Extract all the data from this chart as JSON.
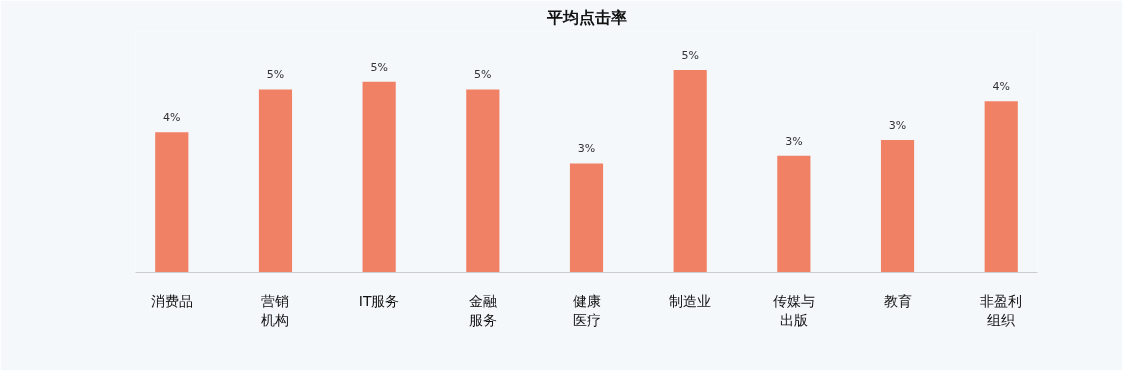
{
  "chart_data": {
    "type": "bar",
    "title": "平均点击率",
    "categories": [
      "消费品",
      "营销机构",
      "IT服务",
      "金融服务",
      "健康医疗",
      "制造业",
      "传媒与出版",
      "教育",
      "非盈利组织"
    ],
    "values": [
      3.6,
      4.7,
      4.9,
      4.7,
      2.8,
      5.2,
      3.0,
      3.4,
      4.4
    ],
    "value_labels": [
      "4%",
      "5%",
      "5%",
      "5%",
      "3%",
      "5%",
      "3%",
      "3%",
      "4%"
    ],
    "color": "#f08165",
    "grid": false
  }
}
